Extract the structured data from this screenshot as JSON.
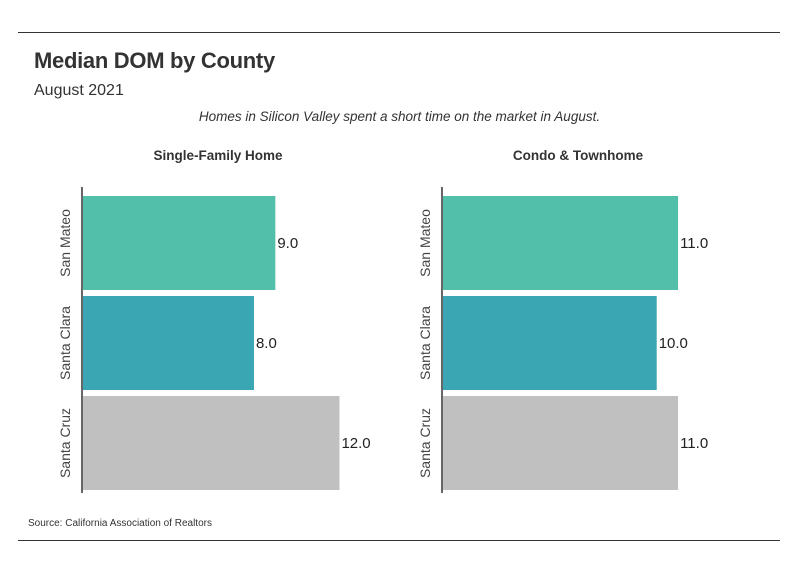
{
  "header": {
    "title": "Median DOM by County",
    "subtitle": "August 2021",
    "caption": "Homes in Silicon Valley spent a short time on the market in August."
  },
  "footer": {
    "source": "Source:  California Association of Realtors"
  },
  "chart_data": [
    {
      "type": "bar",
      "orientation": "horizontal",
      "title": "Single-Family Home",
      "categories": [
        "San Mateo",
        "Santa Clara",
        "Santa Cruz"
      ],
      "values": [
        9.0,
        8.0,
        12.0
      ],
      "value_labels": [
        "9.0",
        "8.0",
        "12.0"
      ],
      "colors": [
        "#52bfaa",
        "#3aa6b4",
        "#c0c0c0"
      ],
      "xlim": [
        0,
        12.4
      ],
      "grid": false
    },
    {
      "type": "bar",
      "orientation": "horizontal",
      "title": "Condo & Townhome",
      "categories": [
        "San Mateo",
        "Santa Clara",
        "Santa Cruz"
      ],
      "values": [
        11.0,
        10.0,
        11.0
      ],
      "value_labels": [
        "11.0",
        "10.0",
        "11.0"
      ],
      "colors": [
        "#52bfaa",
        "#3aa6b4",
        "#c0c0c0"
      ],
      "xlim": [
        0,
        12.4
      ],
      "grid": false
    }
  ]
}
